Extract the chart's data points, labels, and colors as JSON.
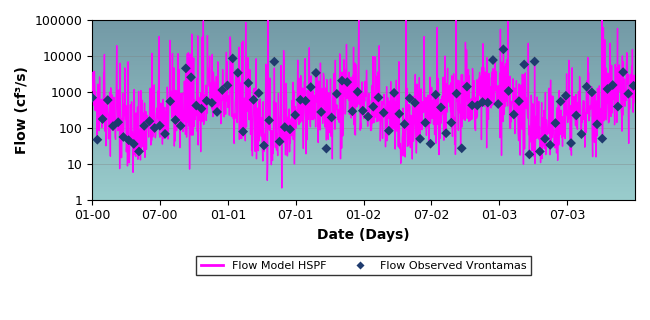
{
  "title": "",
  "ylabel": "Flow (cf³/s)",
  "xlabel": "Date (Days)",
  "xtick_labels": [
    "01-00",
    "07-00",
    "01-01",
    "07-01",
    "01-02",
    "07-02",
    "01-03",
    "07-03"
  ],
  "ytick_labels": [
    "1",
    "10",
    "100",
    "1000",
    "10000",
    "100000"
  ],
  "ytick_values": [
    1,
    10,
    100,
    1000,
    10000,
    100000
  ],
  "ylim_log": [
    1,
    100000
  ],
  "legend_line_label": "Flow Model HSPF",
  "legend_dot_label": "Flow Observed Vrontamas",
  "line_color": "#FF00FF",
  "dot_color": "#1F3B6E",
  "bg_color_top": "#7FAAAA",
  "bg_color_bottom": "#7FB8C0",
  "plot_bg_gradient_top": "#6699AA",
  "plot_bg_gradient_bottom": "#8FCCCC",
  "line_width": 1.0,
  "dot_size": 6,
  "figsize": [
    6.5,
    3.2
  ],
  "num_days": 1461,
  "seed": 42
}
